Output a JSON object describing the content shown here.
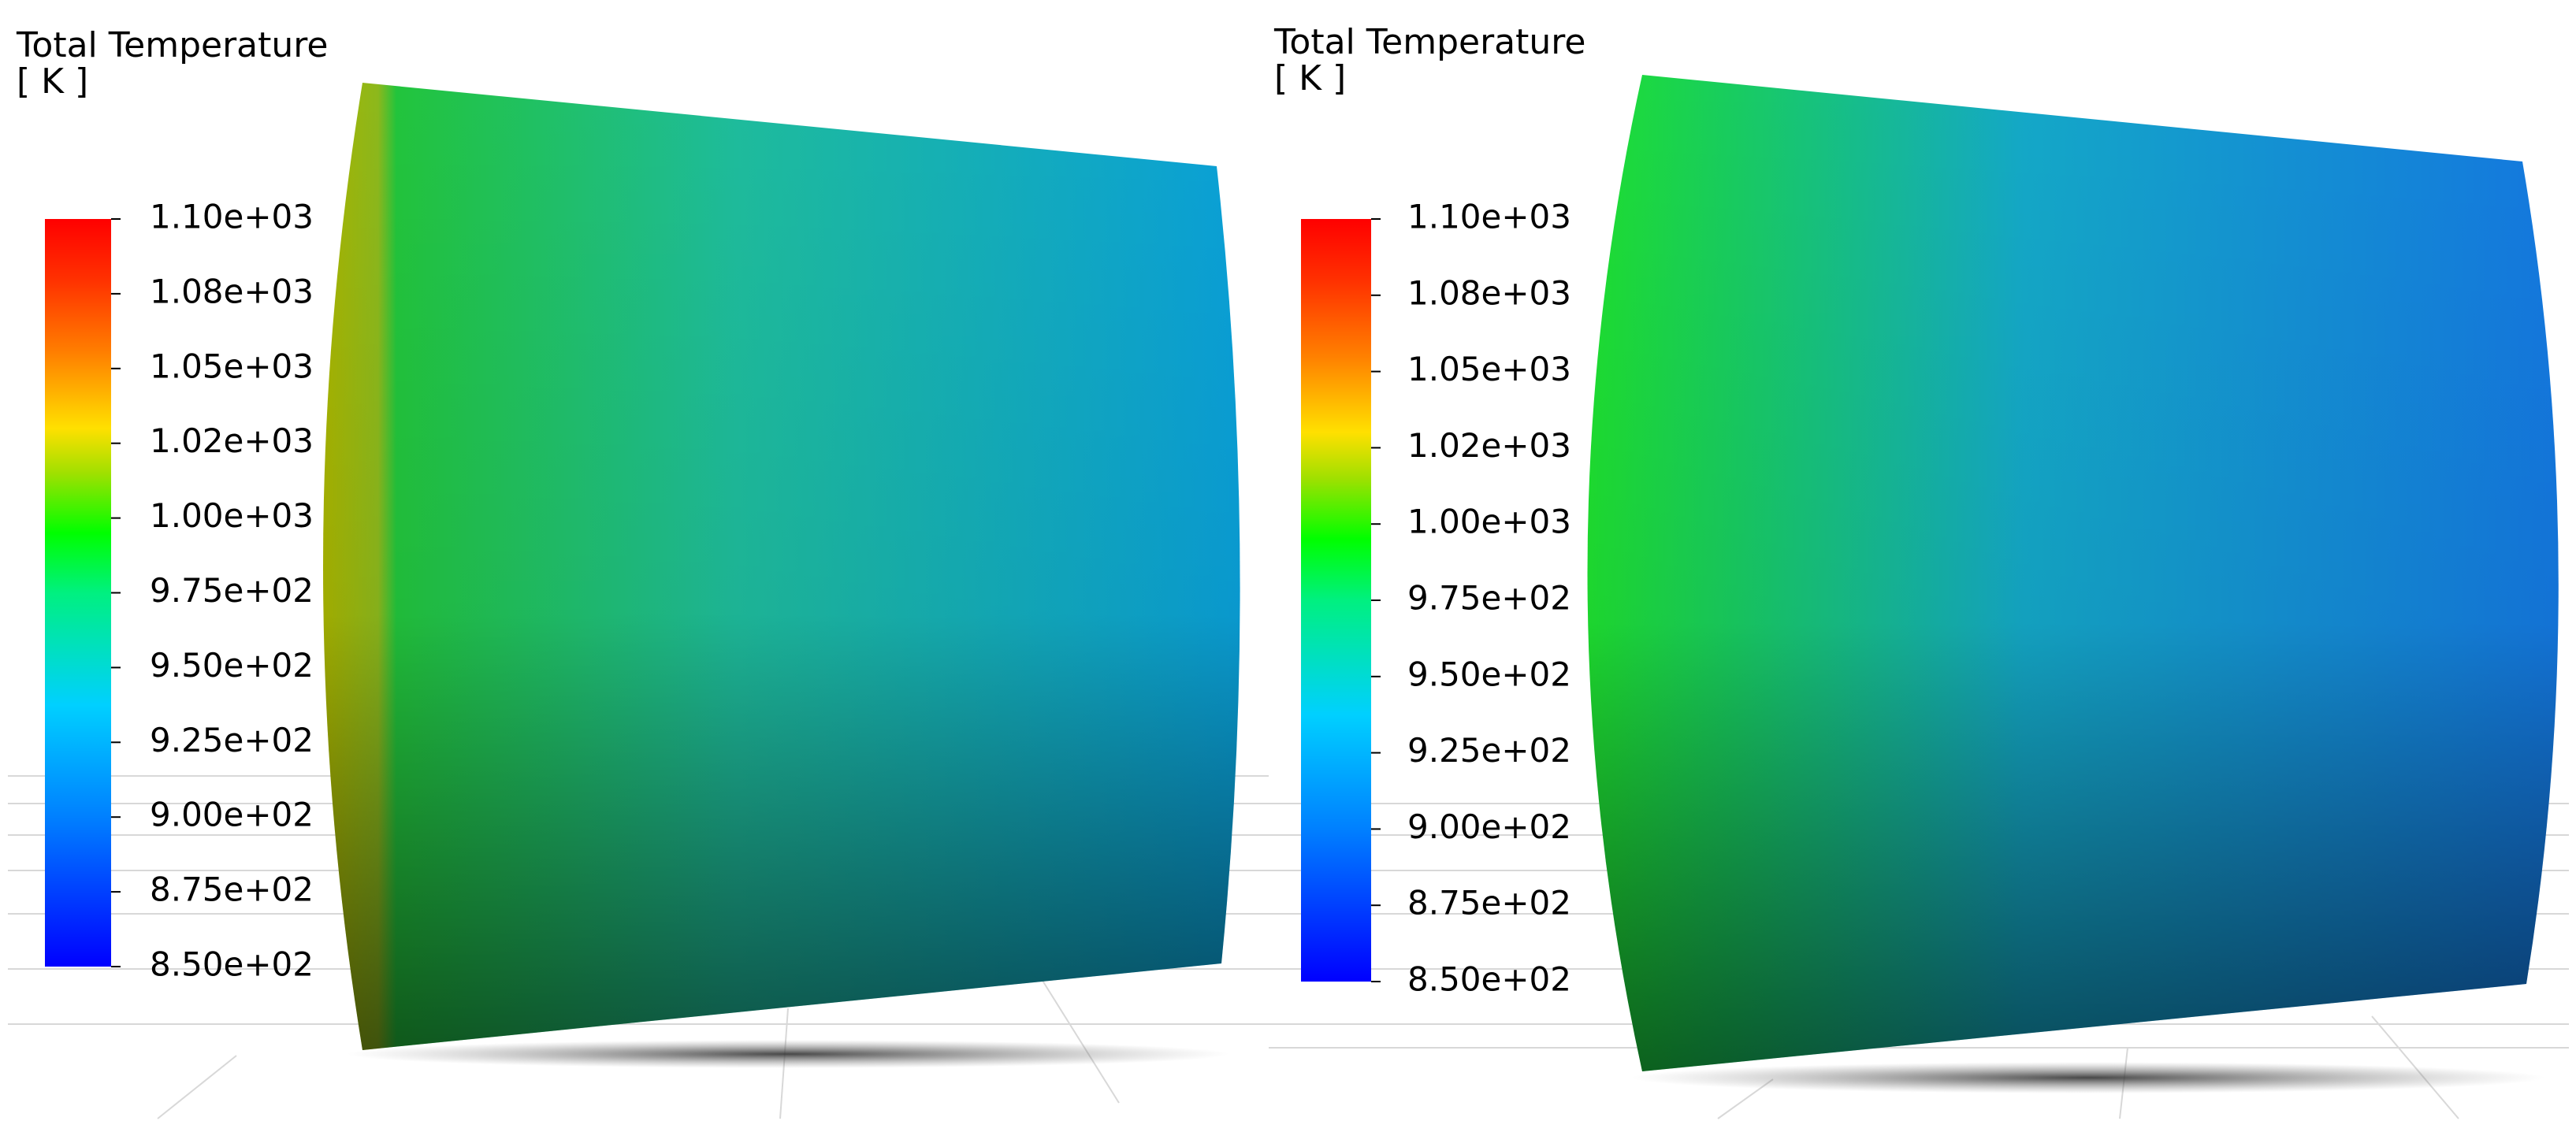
{
  "panels": [
    {
      "title": "Total Temperature",
      "unit": "[ K ]",
      "legend_ticks": [
        "1.10e+03",
        "1.08e+03",
        "1.05e+03",
        "1.02e+03",
        "1.00e+03",
        "9.75e+02",
        "9.50e+02",
        "9.25e+02",
        "9.00e+02",
        "8.75e+02",
        "8.50e+02"
      ]
    },
    {
      "title": "Total Temperature",
      "unit": "[ K ]",
      "legend_ticks": [
        "1.10e+03",
        "1.08e+03",
        "1.05e+03",
        "1.02e+03",
        "1.00e+03",
        "9.75e+02",
        "9.50e+02",
        "9.25e+02",
        "9.00e+02",
        "8.75e+02",
        "8.50e+02"
      ]
    }
  ]
}
